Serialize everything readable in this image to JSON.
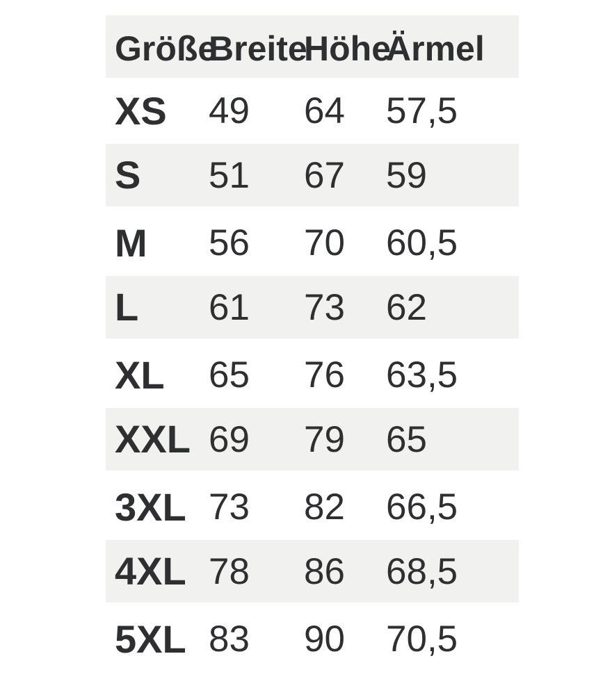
{
  "chart_data": {
    "type": "table",
    "columns": [
      "Größe",
      "Breite",
      "Höhe",
      "Ärmel"
    ],
    "rows": [
      {
        "size": "XS",
        "breite": "49",
        "hoehe": "64",
        "aermel": "57,5"
      },
      {
        "size": "S",
        "breite": "51",
        "hoehe": "67",
        "aermel": "59"
      },
      {
        "size": "M",
        "breite": "56",
        "hoehe": "70",
        "aermel": "60,5"
      },
      {
        "size": "L",
        "breite": "61",
        "hoehe": "73",
        "aermel": "62"
      },
      {
        "size": "XL",
        "breite": "65",
        "hoehe": "76",
        "aermel": "63,5"
      },
      {
        "size": "XXL",
        "breite": "69",
        "hoehe": "79",
        "aermel": "65"
      },
      {
        "size": "3XL",
        "breite": "73",
        "hoehe": "82",
        "aermel": "66,5"
      },
      {
        "size": "4XL",
        "breite": "78",
        "hoehe": "86",
        "aermel": "68,5"
      },
      {
        "size": "5XL",
        "breite": "83",
        "hoehe": "90",
        "aermel": "70,5"
      }
    ],
    "layout": {
      "legend": "none",
      "grid": "off",
      "striping": "header shaded; alternating shaded data rows starting at row S"
    },
    "colors": {
      "row_shade": "#F1F1EF",
      "text": "#2E2F31",
      "page_background": "#FFFFFF"
    }
  }
}
